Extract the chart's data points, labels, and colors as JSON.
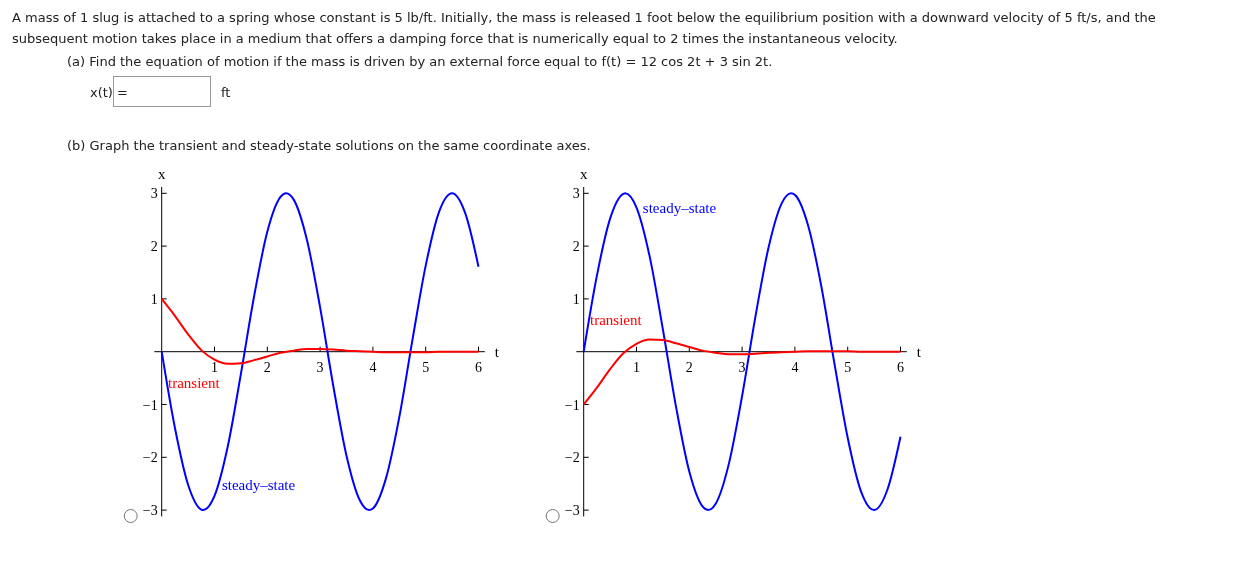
{
  "chart_data": [
    {
      "type": "line",
      "title": "(b) Graph the transient and steady-state solutions on the same coordinate axes.",
      "annotations": [
        "A mass of 1 slug is attached to a spring whose constant is 5 lb/ft. Initially, the mass is released 1 foot below the equilibrium position with a downward velocity of 5 ft/s, and the subsequent motion takes place in a medium that offers a damping force that is numerically equal to 2 times the instantaneous velocity.",
        "(a) Find the equation of motion if the mass is driven by an external force equal to  f(t) = 12 cos 2t + 3 sin 2t.",
        "x(t) =",
        "ft",
        {
          "text": "steady–state",
          "x": 1.14,
          "y": -2.62
        },
        {
          "text": "transient",
          "x": 0.12,
          "y": -0.69
        }
      ],
      "xlabel": "t",
      "ylabel": "x",
      "xlim": [
        -0.14,
        6.12
      ],
      "ylim": [
        -3.12,
        3.12
      ],
      "xticks": [
        1,
        2,
        3,
        4,
        5,
        6
      ],
      "yticks": [
        -3,
        -2,
        -1,
        1,
        2,
        3
      ],
      "series": [
        {
          "color": "#0000ff",
          "x": [
            0,
            0.25,
            0.5,
            0.75,
            0.785,
            1,
            1.25,
            1.5,
            1.75,
            2,
            2.25,
            2.356,
            2.5,
            2.75,
            3,
            3.25,
            3.5,
            3.75,
            3.927,
            4,
            4.25,
            4.5,
            4.75,
            5,
            5.25,
            5.5,
            5.75,
            6
          ],
          "values": [
            0,
            -1.44,
            -2.52,
            -2.99,
            -3,
            -2.73,
            -1.8,
            -0.42,
            1.05,
            2.27,
            2.93,
            3,
            2.88,
            2.12,
            0.84,
            -0.65,
            -1.97,
            -2.81,
            -3,
            -2.97,
            -2.39,
            -1.24,
            0.23,
            1.63,
            2.64,
            3,
            2.62,
            1.61
          ]
        },
        {
          "color": "#ff0000",
          "x": [
            0,
            0.25,
            0.5,
            0.75,
            1,
            1.25,
            1.5,
            1.75,
            2,
            2.25,
            2.5,
            2.75,
            3,
            3.25,
            3.5,
            3.75,
            4,
            4.25,
            4.5,
            4.75,
            5,
            5.25,
            5.5,
            5.75,
            6
          ],
          "values": [
            1,
            0.68,
            0.33,
            0.03,
            -0.15,
            -0.23,
            -0.22,
            -0.16,
            -0.09,
            -0.02,
            0.02,
            0.05,
            0.05,
            0.04,
            0.02,
            0.01,
            0,
            -0.01,
            -0.01,
            -0.01,
            -0.01,
            0,
            0,
            0,
            0
          ]
        }
      ]
    },
    {
      "type": "line",
      "annotations": [
        {
          "text": "steady–state",
          "x": 1.12,
          "y": 2.63
        },
        {
          "text": "transient",
          "x": 0.12,
          "y": 0.5
        }
      ],
      "xlabel": "t",
      "ylabel": "x",
      "xlim": [
        -0.14,
        6.12
      ],
      "ylim": [
        -3.12,
        3.12
      ],
      "xticks": [
        1,
        2,
        3,
        4,
        5,
        6
      ],
      "yticks": [
        -3,
        -2,
        -1,
        1,
        2,
        3
      ],
      "series": [
        {
          "color": "#0000ff",
          "x": [
            0,
            0.25,
            0.5,
            0.75,
            0.785,
            1,
            1.25,
            1.5,
            1.75,
            2,
            2.25,
            2.356,
            2.5,
            2.75,
            3,
            3.25,
            3.5,
            3.75,
            3.927,
            4,
            4.25,
            4.5,
            4.75,
            5,
            5.25,
            5.5,
            5.75,
            6
          ],
          "values": [
            0,
            1.44,
            2.52,
            2.99,
            3,
            2.73,
            1.8,
            0.42,
            -1.05,
            -2.27,
            -2.93,
            -3,
            -2.88,
            -2.12,
            -0.84,
            0.65,
            1.97,
            2.81,
            3,
            2.97,
            2.39,
            1.24,
            -0.23,
            -1.63,
            -2.64,
            -3,
            -2.62,
            -1.61
          ]
        },
        {
          "color": "#ff0000",
          "x": [
            0,
            0.25,
            0.5,
            0.75,
            1,
            1.25,
            1.5,
            1.75,
            2,
            2.25,
            2.5,
            2.75,
            3,
            3.25,
            3.5,
            3.75,
            4,
            4.25,
            4.5,
            4.75,
            5,
            5.25,
            5.5,
            5.75,
            6
          ],
          "values": [
            -1,
            -0.68,
            -0.33,
            -0.03,
            0.15,
            0.23,
            0.22,
            0.16,
            0.09,
            0.02,
            -0.02,
            -0.05,
            -0.05,
            -0.04,
            -0.02,
            -0.01,
            0,
            0.01,
            0.01,
            0.01,
            0.01,
            0,
            0,
            0,
            0
          ]
        }
      ]
    }
  ]
}
